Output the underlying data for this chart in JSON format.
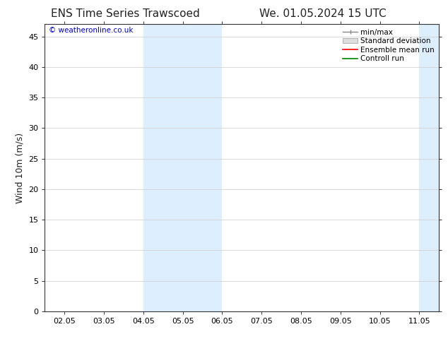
{
  "title_left": "ENS Time Series Trawscoed",
  "title_right": "We. 01.05.2024 15 UTC",
  "ylabel": "Wind 10m (m/s)",
  "ylim": [
    0,
    47
  ],
  "yticks": [
    0,
    5,
    10,
    15,
    20,
    25,
    30,
    35,
    40,
    45
  ],
  "date_start": "2024-05-02",
  "date_end": "2024-05-11",
  "xlabel_dates": [
    "2024-05-02",
    "2024-05-03",
    "2024-05-04",
    "2024-05-05",
    "2024-05-06",
    "2024-05-07",
    "2024-05-08",
    "2024-05-09",
    "2024-05-10",
    "2024-05-11"
  ],
  "xlabel_labels": [
    "02.05",
    "03.05",
    "04.05",
    "05.05",
    "06.05",
    "07.05",
    "08.05",
    "09.05",
    "10.05",
    "11.05"
  ],
  "band1_start": "2024-05-04",
  "band1_end": "2024-05-06",
  "band2_start": "2024-05-11",
  "band_color": "#ddeeff",
  "bg_color": "#ffffff",
  "grid_color": "#cccccc",
  "legend_items": [
    {
      "label": "min/max",
      "color": "#999999"
    },
    {
      "label": "Standard deviation",
      "color": "#cccccc"
    },
    {
      "label": "Ensemble mean run",
      "color": "#ff0000"
    },
    {
      "label": "Controll run",
      "color": "#008000"
    }
  ],
  "watermark_text": "© weatheronline.co.uk",
  "watermark_color": "#0000cc",
  "title_fontsize": 11,
  "axis_fontsize": 9,
  "tick_fontsize": 8,
  "legend_fontsize": 7.5
}
